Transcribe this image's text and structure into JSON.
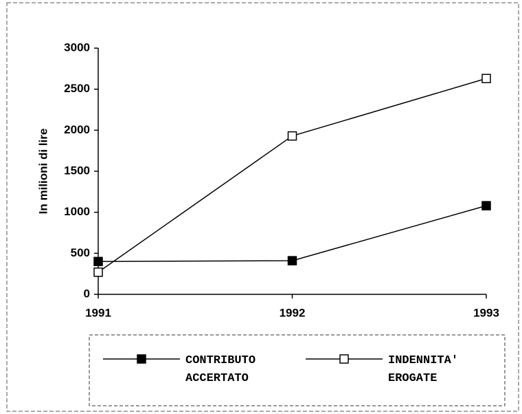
{
  "chart_data": {
    "type": "line",
    "y_label": "In milioni di lire",
    "categories": [
      "1991",
      "1992",
      "1993"
    ],
    "series": [
      {
        "name": "CONTRIBUTO ACCERTATO",
        "color": "#000000",
        "marker": "filled-square",
        "values": [
          400,
          410,
          1080
        ]
      },
      {
        "name": "INDENNITA' EROGATE",
        "color": "#000000",
        "marker": "open-square",
        "values": [
          270,
          1930,
          2630
        ]
      }
    ],
    "ylim": [
      0,
      3000
    ],
    "yticks": [
      0,
      500,
      1000,
      1500,
      2000,
      2500,
      3000
    ]
  }
}
